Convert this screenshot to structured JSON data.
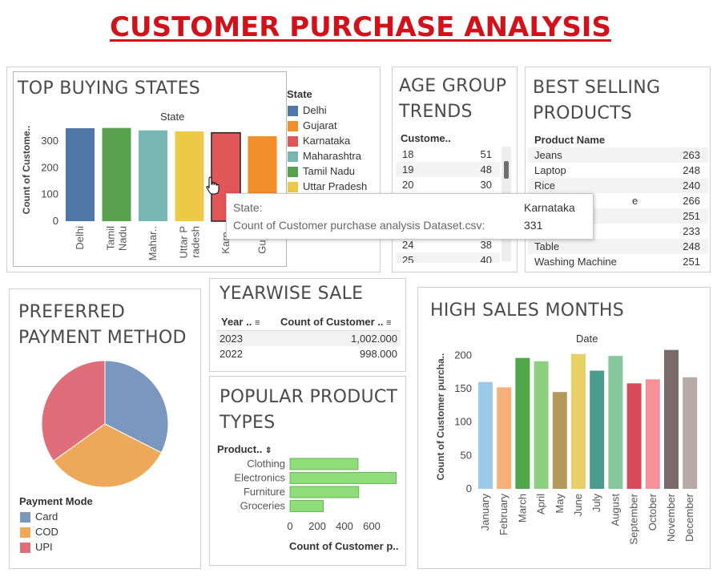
{
  "dashboard_title": "CUSTOMER PURCHASE ANALYSIS",
  "top_states": {
    "title": "TOP BUYING STATES",
    "axis_header": "State",
    "ylabel": "Count of Custome..",
    "legend_title": "State",
    "legend": [
      {
        "name": "Delhi",
        "color": "#4e79a7"
      },
      {
        "name": "Gujarat",
        "color": "#f28e2b"
      },
      {
        "name": "Karnataka",
        "color": "#e15759"
      },
      {
        "name": "Maharashtra",
        "color": "#76b7b2"
      },
      {
        "name": "Tamil Nadu",
        "color": "#59a14f"
      },
      {
        "name": "Uttar Pradesh",
        "color": "#edc948"
      }
    ]
  },
  "tooltip": {
    "label1": "State:",
    "value1": "Karnataka",
    "label2": "Count of Customer purchase analysis Dataset.csv:",
    "value2": "331"
  },
  "age_trends": {
    "title_line1": "AGE GROUP",
    "title_line2": "TRENDS",
    "col_header": "Custome..",
    "rows": [
      {
        "age": "18",
        "count": "51"
      },
      {
        "age": "19",
        "count": "48"
      },
      {
        "age": "20",
        "count": "30"
      },
      {
        "age": "24",
        "count": "38"
      },
      {
        "age": "25",
        "count": "40"
      }
    ]
  },
  "best_products": {
    "title_line1": "BEST SELLING",
    "title_line2": "PRODUCTS",
    "col_header": "Product Name",
    "rows": [
      {
        "name": "Jeans",
        "value": "263"
      },
      {
        "name": "Laptop",
        "value": "248"
      },
      {
        "name": "Rice",
        "value": "240"
      },
      {
        "name": "e",
        "value": "266"
      },
      {
        "name": "",
        "value": "251"
      },
      {
        "name": "",
        "value": "233"
      },
      {
        "name": "Table",
        "value": "248"
      },
      {
        "name": "Washing Machine",
        "value": "251"
      }
    ]
  },
  "payment": {
    "title_line1": "PREFERRED",
    "title_line2": "PAYMENT METHOD",
    "legend_title": "Payment Mode",
    "legend": [
      {
        "name": "Card",
        "color": "#7a97be"
      },
      {
        "name": "COD",
        "color": "#eda85a"
      },
      {
        "name": "UPI",
        "color": "#e06e7a"
      }
    ]
  },
  "yearwise": {
    "title": "YEARWISE SALE",
    "col1": "Year ..",
    "col2": "Count of Customer ..",
    "rows": [
      {
        "year": "2023",
        "value": "1,002.000"
      },
      {
        "year": "2022",
        "value": "998.000"
      }
    ]
  },
  "product_types": {
    "title_line1": "POPULAR PRODUCT",
    "title_line2": "TYPES",
    "col_header": "Product..",
    "xlabel": "Count of Customer p..",
    "bar_color": "#8fdc7a"
  },
  "high_months": {
    "title": "HIGH SALES MONTHS",
    "axis_header": "Date",
    "ylabel": "Count of Customer purcha.."
  },
  "chart_data": [
    {
      "type": "bar",
      "title": "TOP BUYING STATES",
      "categories": [
        "Delhi",
        "Tamil Nadu",
        "Maharashtra",
        "Uttar Pradesh",
        "Karnataka",
        "Gujarat"
      ],
      "tick_labels": [
        "Delhi",
        "Tamil\nNadu",
        "Mahar..",
        "Uttar P\nradesh",
        "Karn..",
        "Guja.."
      ],
      "values": [
        348,
        349,
        340,
        336,
        331,
        318
      ],
      "colors": [
        "#4e79a7",
        "#59a14f",
        "#76b7b2",
        "#edc948",
        "#e15759",
        "#f28e2b"
      ],
      "highlight_index": 4,
      "yticks": [
        0,
        100,
        200,
        300
      ],
      "ylim": [
        0,
        360
      ]
    },
    {
      "type": "pie",
      "title": "PREFERRED PAYMENT METHOD",
      "categories": [
        "Card",
        "COD",
        "UPI"
      ],
      "values": [
        0.325,
        0.326,
        0.349
      ],
      "colors": [
        "#7a97be",
        "#eda85a",
        "#e06e7a"
      ]
    },
    {
      "type": "bar",
      "orientation": "horizontal",
      "title": "POPULAR PRODUCT TYPES",
      "categories": [
        "Clothing",
        "Electronics",
        "Furniture",
        "Groceries"
      ],
      "values": [
        500,
        780,
        505,
        245
      ],
      "xticks": [
        0,
        200,
        400,
        600
      ],
      "xlim": [
        0,
        800
      ]
    },
    {
      "type": "bar",
      "title": "HIGH SALES MONTHS",
      "categories": [
        "January",
        "February",
        "March",
        "April",
        "May",
        "June",
        "July",
        "August",
        "September",
        "October",
        "November",
        "December"
      ],
      "values": [
        160,
        152,
        196,
        191,
        145,
        202,
        177,
        199,
        158,
        164,
        208,
        167
      ],
      "colors": [
        "#9ecae9",
        "#f7b07a",
        "#4fa74a",
        "#8cd17d",
        "#b29a5a",
        "#e8d067",
        "#4a9c8f",
        "#86c89b",
        "#d84a5a",
        "#f6909a",
        "#7a6a6a",
        "#b8aaa6"
      ],
      "yticks": [
        0,
        50,
        100,
        150,
        200
      ],
      "ylim": [
        0,
        210
      ]
    }
  ]
}
